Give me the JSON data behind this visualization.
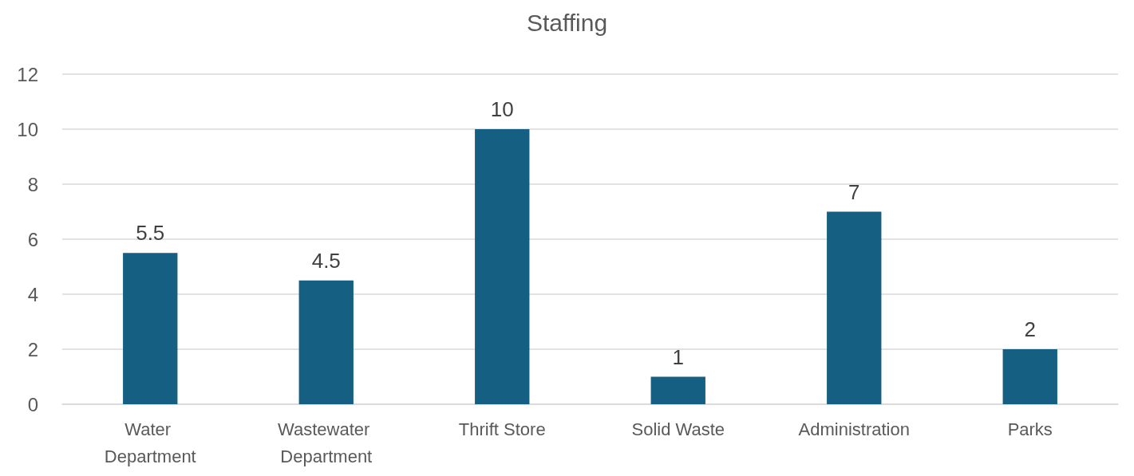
{
  "chart_data": {
    "type": "bar",
    "title": "Staffing",
    "categories": [
      "Water Department",
      "Wastewater Department",
      "Thrift Store",
      "Solid Waste",
      "Administration",
      "Parks"
    ],
    "values": [
      5.5,
      4.5,
      10,
      1,
      7,
      2
    ],
    "color": "#156082",
    "ylim": [
      0,
      12
    ],
    "yticks": [
      0,
      2,
      4,
      6,
      8,
      10,
      12
    ],
    "grid": "y",
    "data_labels": true
  }
}
